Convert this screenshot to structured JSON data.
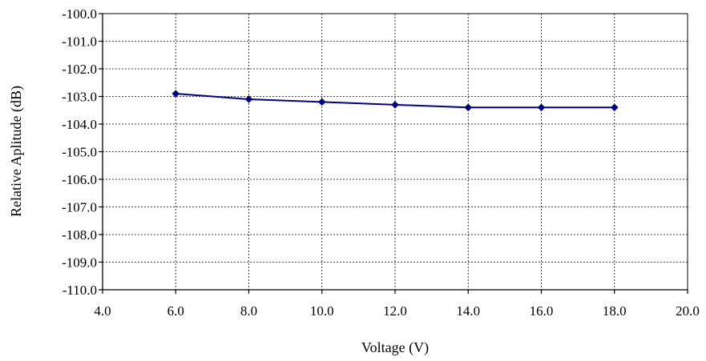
{
  "chart_data": {
    "type": "line",
    "title": "",
    "xlabel": "Voltage (V)",
    "ylabel": "Relative Aplitude (dB)",
    "xlim": [
      4.0,
      20.0
    ],
    "ylim": [
      -110.0,
      -100.0
    ],
    "x_ticks": [
      4.0,
      6.0,
      8.0,
      10.0,
      12.0,
      14.0,
      16.0,
      18.0,
      20.0
    ],
    "y_ticks": [
      -100.0,
      -101.0,
      -102.0,
      -103.0,
      -104.0,
      -105.0,
      -106.0,
      -107.0,
      -108.0,
      -109.0,
      -110.0
    ],
    "x_tick_labels": [
      "4.0",
      "6.0",
      "8.0",
      "10.0",
      "12.0",
      "14.0",
      "16.0",
      "18.0",
      "20.0"
    ],
    "y_tick_labels": [
      "-100.0",
      "-101.0",
      "-102.0",
      "-103.0",
      "-104.0",
      "-105.0",
      "-106.0",
      "-107.0",
      "-108.0",
      "-109.0",
      "-110.0"
    ],
    "grid": true,
    "legend": "none",
    "series": [
      {
        "color": "#00008B",
        "marker": "diamond",
        "x": [
          6.0,
          8.0,
          10.0,
          12.0,
          14.0,
          16.0,
          18.0
        ],
        "y": [
          -102.9,
          -103.1,
          -103.2,
          -103.3,
          -103.4,
          -103.4,
          -103.4
        ]
      }
    ]
  }
}
